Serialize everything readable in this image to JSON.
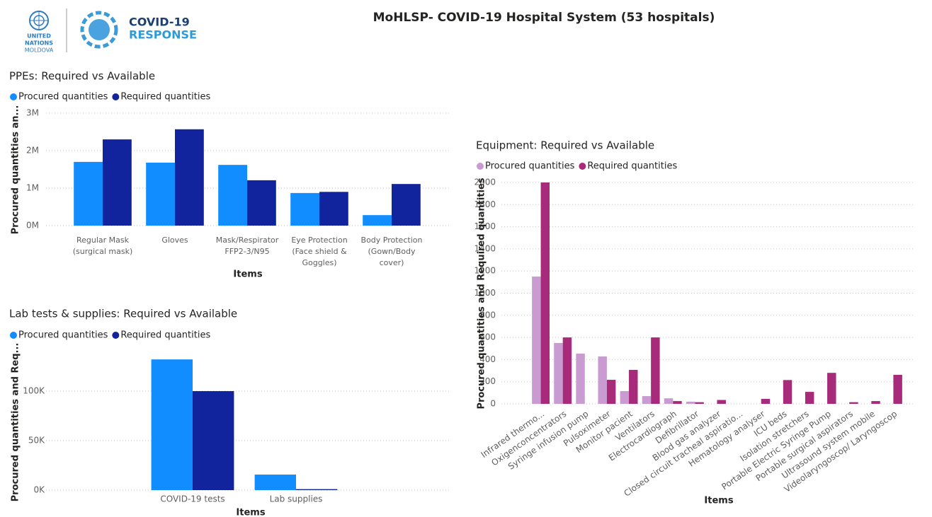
{
  "header": {
    "title": "MoHLSP- COVID-19 Hospital System (53 hospitals)",
    "un_lines": [
      "UNITED",
      "NATIONS",
      "MOLDOVA"
    ],
    "logo_lines": [
      "COVID-19",
      "RESPONSE"
    ]
  },
  "chart_data": [
    {
      "type": "bar",
      "title": "PPEs: Required vs Available",
      "x_label": "Items",
      "y_label": "Procured quantities an...",
      "categories": [
        "Regular Mask (surgical mask)",
        "Gloves",
        "Mask/Respirator FFP2-3/N95",
        "Eye Protection (Face shield & Goggles)",
        "Body Protection (Gown/Body cover)"
      ],
      "series": [
        {
          "name": "Procured quantities",
          "color": "#118DFF",
          "values": [
            1700000,
            1680000,
            1620000,
            870000,
            280000
          ]
        },
        {
          "name": "Required quantities",
          "color": "#12239E",
          "values": [
            2300000,
            2570000,
            1210000,
            900000,
            1110000
          ]
        }
      ],
      "ylim": [
        0,
        3000000
      ],
      "yticks": [
        {
          "value": 0,
          "label": "0M"
        },
        {
          "value": 1000000,
          "label": "1M"
        },
        {
          "value": 2000000,
          "label": "2M"
        },
        {
          "value": 3000000,
          "label": "3M"
        }
      ],
      "grid": true,
      "legend": "top-left"
    },
    {
      "type": "bar",
      "title": "Lab tests & supplies: Required vs Available",
      "x_label": "Items",
      "y_label": "Procured quantities and Req...",
      "categories": [
        "COVID-19 tests",
        "Lab supplies"
      ],
      "series": [
        {
          "name": "Procured quantities",
          "color": "#118DFF",
          "values": [
            132000,
            15700
          ]
        },
        {
          "name": "Required quantities",
          "color": "#12239E",
          "values": [
            100000,
            1000
          ]
        }
      ],
      "ylim": [
        0,
        145000
      ],
      "yticks": [
        {
          "value": 0,
          "label": "0K"
        },
        {
          "value": 50000,
          "label": "50K"
        },
        {
          "value": 100000,
          "label": "100K"
        }
      ],
      "grid": true,
      "legend": "top-left"
    },
    {
      "type": "bar",
      "title": "Equipment: Required vs Available",
      "x_label": "Items",
      "y_label": "Procured quantities and Required quantities",
      "categories": [
        "Infrared thermo...",
        "Oxigenconcentrators",
        "Syringe infusion pump",
        "Pulsoximeter",
        "Monitor pacient",
        "Ventilators",
        "Electrocardiograph",
        "Defibrillator",
        "Blood gas analyzer",
        "Closed circuit tracheal aspiratio...",
        "Hematology analyser",
        "ICU beds",
        "Isolation stretchers",
        "Portable Electric Syringe Pump",
        "Portable surgical aspirators",
        "Ultrasound system mobile",
        "Videolaryngoscop/ Laryngoscop"
      ],
      "series": [
        {
          "name": "Procured quantities",
          "color": "#C99BD2",
          "values": [
            1150,
            550,
            454,
            428,
            115,
            70,
            50,
            20,
            null,
            null,
            null,
            null,
            null,
            null,
            null,
            null,
            null
          ]
        },
        {
          "name": "Required quantities",
          "color": "#A82A7A",
          "values": [
            2000,
            600,
            null,
            217,
            307,
            600,
            25,
            15,
            35,
            null,
            45,
            215,
            108,
            280,
            15,
            25,
            262
          ]
        }
      ],
      "ylim": [
        0,
        2000
      ],
      "yticks": [
        0,
        200,
        400,
        600,
        800,
        1000,
        1200,
        1400,
        1600,
        1800,
        2000
      ],
      "grid": true,
      "legend": "top-left"
    }
  ]
}
